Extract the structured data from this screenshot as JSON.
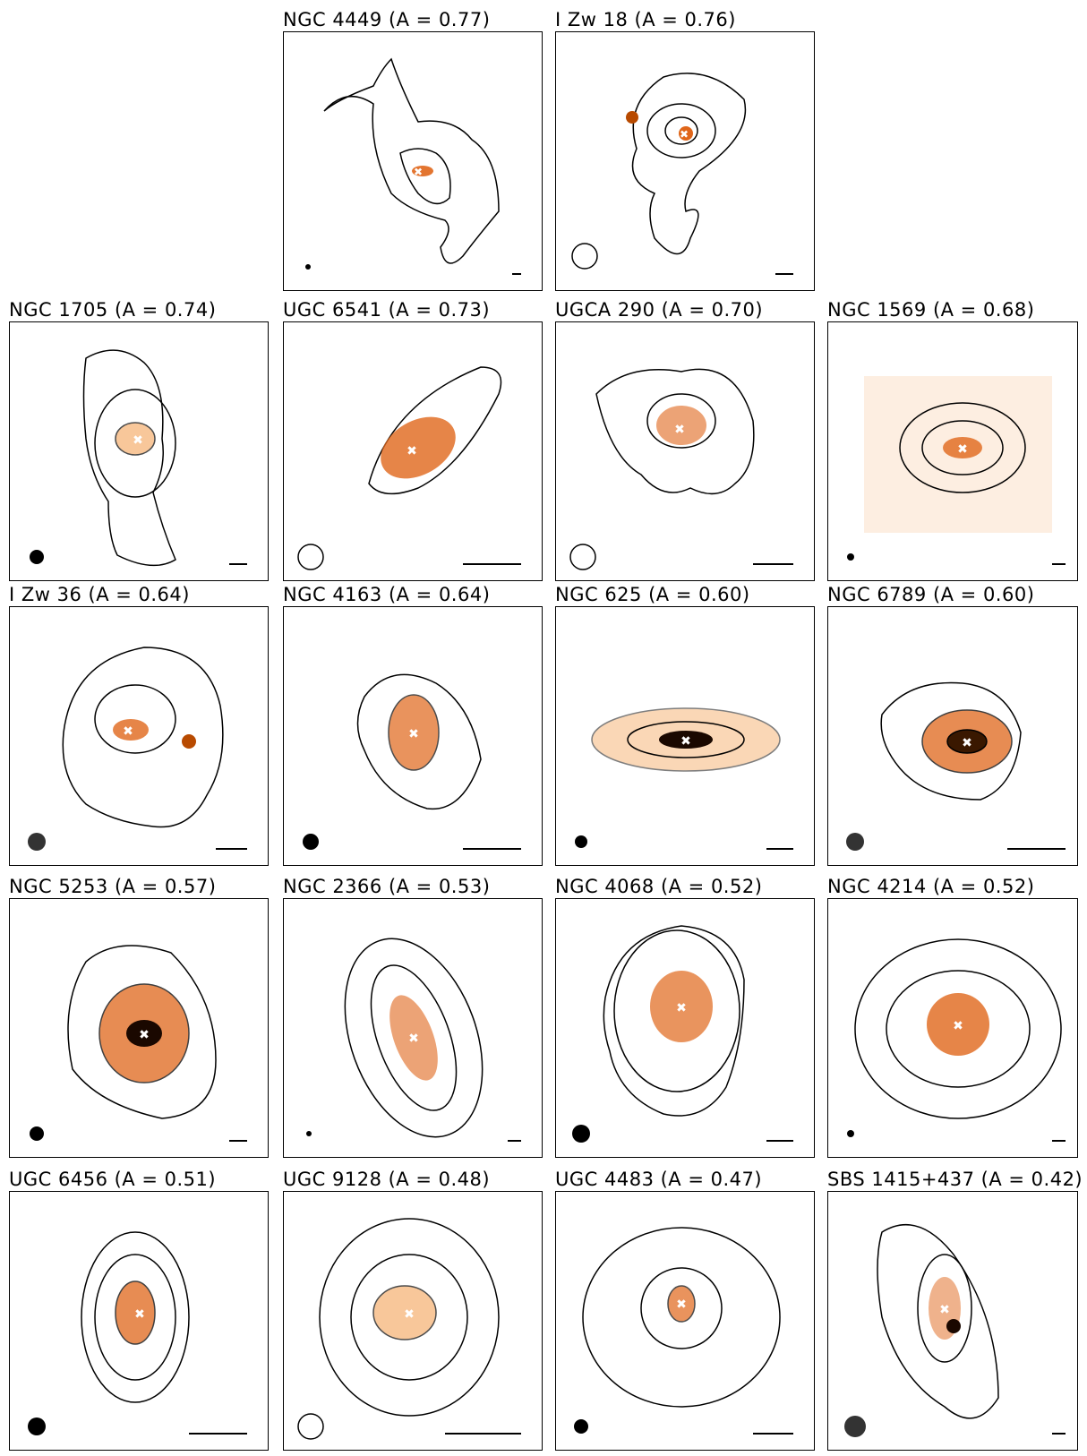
{
  "figure": {
    "panels": [
      {
        "id": "ngc4449",
        "title": "NGC 4449 (A = 0.77)"
      },
      {
        "id": "izw18",
        "title": "I Zw 18 (A = 0.76)"
      },
      {
        "id": "ngc1705",
        "title": "NGC 1705 (A = 0.74)"
      },
      {
        "id": "ugc6541",
        "title": "UGC 6541 (A = 0.73)"
      },
      {
        "id": "ugca290",
        "title": "UGCA 290 (A = 0.70)"
      },
      {
        "id": "ngc1569",
        "title": "NGC 1569 (A = 0.68)"
      },
      {
        "id": "izw36",
        "title": "I Zw 36 (A = 0.64)"
      },
      {
        "id": "ngc4163",
        "title": "NGC 4163 (A = 0.64)"
      },
      {
        "id": "ngc625",
        "title": "NGC 625 (A = 0.60)"
      },
      {
        "id": "ngc6789",
        "title": "NGC 6789 (A = 0.60)"
      },
      {
        "id": "ngc5253",
        "title": "NGC 5253 (A = 0.57)"
      },
      {
        "id": "ngc2366",
        "title": "NGC 2366 (A = 0.53)"
      },
      {
        "id": "ngc4068",
        "title": "NGC 4068 (A = 0.52)"
      },
      {
        "id": "ngc4214",
        "title": "NGC 4214 (A = 0.52)"
      },
      {
        "id": "ugc6456",
        "title": "UGC 6456 (A = 0.51)"
      },
      {
        "id": "ugc9128",
        "title": "UGC 9128 (A = 0.48)"
      },
      {
        "id": "ugc4483",
        "title": "UGC 4483 (A = 0.47)"
      },
      {
        "id": "sbs1415",
        "title": "SBS 1415+437 (A = 0.42)"
      }
    ]
  },
  "colors": {
    "galaxy_core": "#1a0800",
    "galaxy_mid": "#e0661a",
    "galaxy_outer": "#f6b070",
    "contour": "#000000",
    "marker": "#ffffff"
  }
}
